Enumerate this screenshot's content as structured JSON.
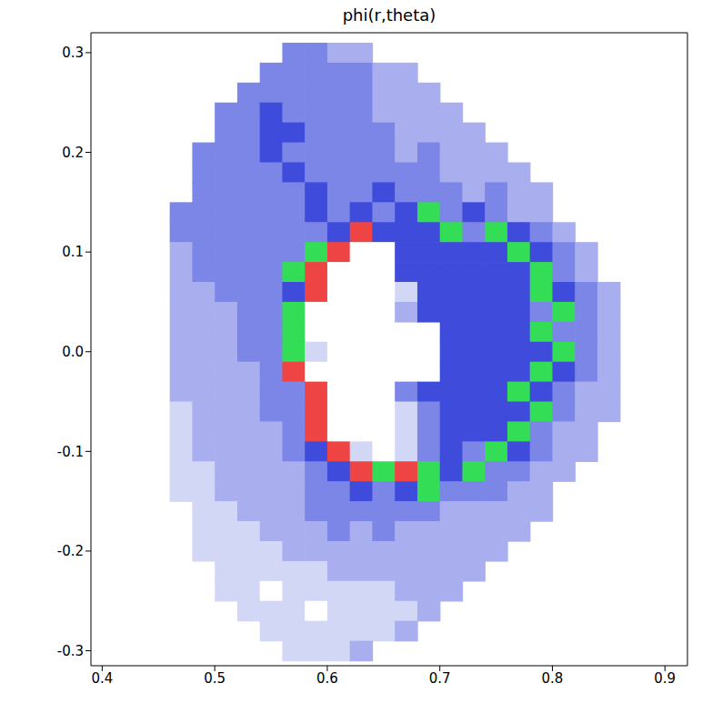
{
  "chart_data": {
    "type": "heatmap",
    "title": "phi(r,theta)",
    "x": [
      0.47,
      0.49,
      0.51,
      0.53,
      0.55,
      0.57,
      0.59,
      0.61,
      0.63,
      0.65,
      0.67,
      0.69,
      0.71,
      0.73,
      0.75,
      0.77,
      0.79,
      0.81,
      0.83,
      0.85
    ],
    "y": [
      0.3,
      0.28,
      0.26,
      0.24,
      0.22,
      0.2,
      0.18,
      0.16,
      0.14,
      0.12,
      0.1,
      0.08,
      0.06,
      0.04,
      0.02,
      0,
      -0.02,
      -0.04,
      -0.06,
      -0.08,
      -0.1,
      -0.12,
      -0.14,
      -0.16,
      -0.18,
      -0.2,
      -0.22,
      -0.24,
      -0.26,
      -0.28,
      -0.3
    ],
    "z": [
      [
        null,
        null,
        null,
        null,
        null,
        3,
        3,
        2,
        2,
        null,
        null,
        null,
        null,
        null,
        null,
        null,
        null,
        null,
        null,
        null
      ],
      [
        null,
        null,
        null,
        null,
        3,
        3,
        3,
        3,
        3,
        2,
        2,
        null,
        null,
        null,
        null,
        null,
        null,
        null,
        null,
        null
      ],
      [
        null,
        null,
        null,
        3,
        3,
        3,
        3,
        3,
        3,
        2,
        2,
        2,
        null,
        null,
        null,
        null,
        null,
        null,
        null,
        null
      ],
      [
        null,
        null,
        3,
        3,
        4,
        3,
        3,
        3,
        3,
        2,
        2,
        2,
        2,
        null,
        null,
        null,
        null,
        null,
        null,
        null
      ],
      [
        null,
        null,
        3,
        3,
        4,
        4,
        3,
        3,
        3,
        3,
        2,
        2,
        2,
        2,
        null,
        null,
        null,
        null,
        null,
        null
      ],
      [
        null,
        3,
        3,
        3,
        4,
        3,
        3,
        3,
        3,
        3,
        2,
        3,
        2,
        2,
        2,
        null,
        null,
        null,
        null,
        null
      ],
      [
        null,
        3,
        3,
        3,
        3,
        4,
        3,
        3,
        3,
        3,
        3,
        3,
        2,
        2,
        2,
        2,
        null,
        null,
        null,
        null
      ],
      [
        null,
        3,
        3,
        3,
        3,
        3,
        4,
        3,
        3,
        4,
        3,
        3,
        3,
        2,
        3,
        2,
        2,
        null,
        null,
        null
      ],
      [
        3,
        3,
        3,
        3,
        3,
        3,
        4,
        3,
        4,
        3,
        4,
        6,
        3,
        4,
        3,
        2,
        2,
        null,
        null,
        null
      ],
      [
        3,
        3,
        3,
        3,
        3,
        3,
        3,
        4,
        5,
        4,
        4,
        4,
        6,
        3,
        6,
        4,
        3,
        2,
        null,
        null
      ],
      [
        2,
        3,
        3,
        3,
        3,
        3,
        6,
        5,
        0,
        0,
        4,
        4,
        4,
        4,
        4,
        6,
        4,
        3,
        2,
        null
      ],
      [
        2,
        3,
        3,
        3,
        3,
        6,
        5,
        0,
        0,
        0,
        4,
        4,
        4,
        4,
        4,
        4,
        6,
        3,
        2,
        null
      ],
      [
        2,
        2,
        3,
        3,
        3,
        4,
        5,
        0,
        0,
        0,
        1,
        4,
        4,
        4,
        4,
        4,
        6,
        4,
        3,
        2
      ],
      [
        2,
        2,
        2,
        3,
        3,
        6,
        0,
        0,
        0,
        0,
        2,
        4,
        4,
        4,
        4,
        4,
        3,
        6,
        3,
        2
      ],
      [
        2,
        2,
        2,
        3,
        3,
        6,
        0,
        0,
        0,
        null,
        null,
        null,
        4,
        4,
        4,
        4,
        6,
        3,
        3,
        2
      ],
      [
        2,
        2,
        2,
        3,
        3,
        6,
        1,
        0,
        0,
        null,
        null,
        null,
        4,
        4,
        4,
        4,
        4,
        6,
        3,
        2
      ],
      [
        2,
        2,
        2,
        2,
        3,
        5,
        0,
        0,
        0,
        null,
        null,
        null,
        4,
        4,
        4,
        4,
        6,
        4,
        3,
        2
      ],
      [
        2,
        2,
        2,
        2,
        3,
        3,
        5,
        0,
        0,
        0,
        3,
        4,
        4,
        4,
        4,
        6,
        4,
        3,
        2,
        2
      ],
      [
        1,
        2,
        2,
        2,
        3,
        3,
        5,
        0,
        0,
        0,
        1,
        3,
        4,
        4,
        4,
        4,
        6,
        3,
        2,
        2
      ],
      [
        1,
        2,
        2,
        2,
        2,
        3,
        5,
        0,
        0,
        0,
        1,
        3,
        4,
        4,
        4,
        6,
        3,
        2,
        2,
        null
      ],
      [
        1,
        2,
        2,
        2,
        2,
        3,
        4,
        5,
        1,
        0,
        1,
        3,
        4,
        3,
        6,
        4,
        3,
        2,
        2,
        null
      ],
      [
        1,
        1,
        2,
        2,
        2,
        2,
        3,
        4,
        5,
        6,
        5,
        6,
        4,
        6,
        3,
        3,
        2,
        2,
        null,
        null
      ],
      [
        1,
        1,
        2,
        2,
        2,
        2,
        3,
        3,
        4,
        3,
        4,
        6,
        3,
        3,
        3,
        2,
        2,
        null,
        null,
        null
      ],
      [
        null,
        1,
        1,
        2,
        2,
        2,
        3,
        3,
        3,
        3,
        3,
        3,
        2,
        2,
        2,
        2,
        2,
        null,
        null,
        null
      ],
      [
        null,
        1,
        1,
        1,
        2,
        2,
        2,
        3,
        2,
        3,
        2,
        2,
        2,
        2,
        2,
        2,
        null,
        null,
        null,
        null
      ],
      [
        null,
        1,
        1,
        1,
        1,
        2,
        2,
        2,
        2,
        2,
        2,
        2,
        2,
        2,
        2,
        null,
        null,
        null,
        null,
        null
      ],
      [
        null,
        null,
        1,
        1,
        1,
        1,
        1,
        2,
        2,
        2,
        2,
        2,
        2,
        2,
        null,
        null,
        null,
        null,
        null,
        null
      ],
      [
        null,
        null,
        1,
        1,
        0,
        1,
        1,
        1,
        1,
        1,
        2,
        2,
        2,
        null,
        null,
        null,
        null,
        null,
        null,
        null
      ],
      [
        null,
        null,
        null,
        1,
        1,
        1,
        0,
        1,
        1,
        1,
        1,
        2,
        null,
        null,
        null,
        null,
        null,
        null,
        null,
        null
      ],
      [
        null,
        null,
        null,
        null,
        1,
        1,
        1,
        1,
        1,
        1,
        2,
        null,
        null,
        null,
        null,
        null,
        null,
        null,
        null,
        null
      ],
      [
        null,
        null,
        null,
        null,
        null,
        1,
        1,
        1,
        2,
        null,
        null,
        null,
        null,
        null,
        null,
        null,
        null,
        null,
        null,
        null
      ]
    ],
    "zlim": [
      0,
      6
    ],
    "colors": [
      "#ffffff",
      "#d3d7f6",
      "#a9afee",
      "#7c86e6",
      "#3f4bdb",
      "#ee4444",
      "#33dd55"
    ],
    "xlim": [
      0.39,
      0.92
    ],
    "ylim": [
      -0.315,
      0.32
    ],
    "xticks": [
      0.4,
      0.5,
      0.6,
      0.7,
      0.8,
      0.9
    ],
    "yticks": [
      -0.3,
      -0.2,
      -0.1,
      {
        "value": 0,
        "label": "0.0"
      },
      0.1,
      0.2,
      0.3
    ]
  }
}
